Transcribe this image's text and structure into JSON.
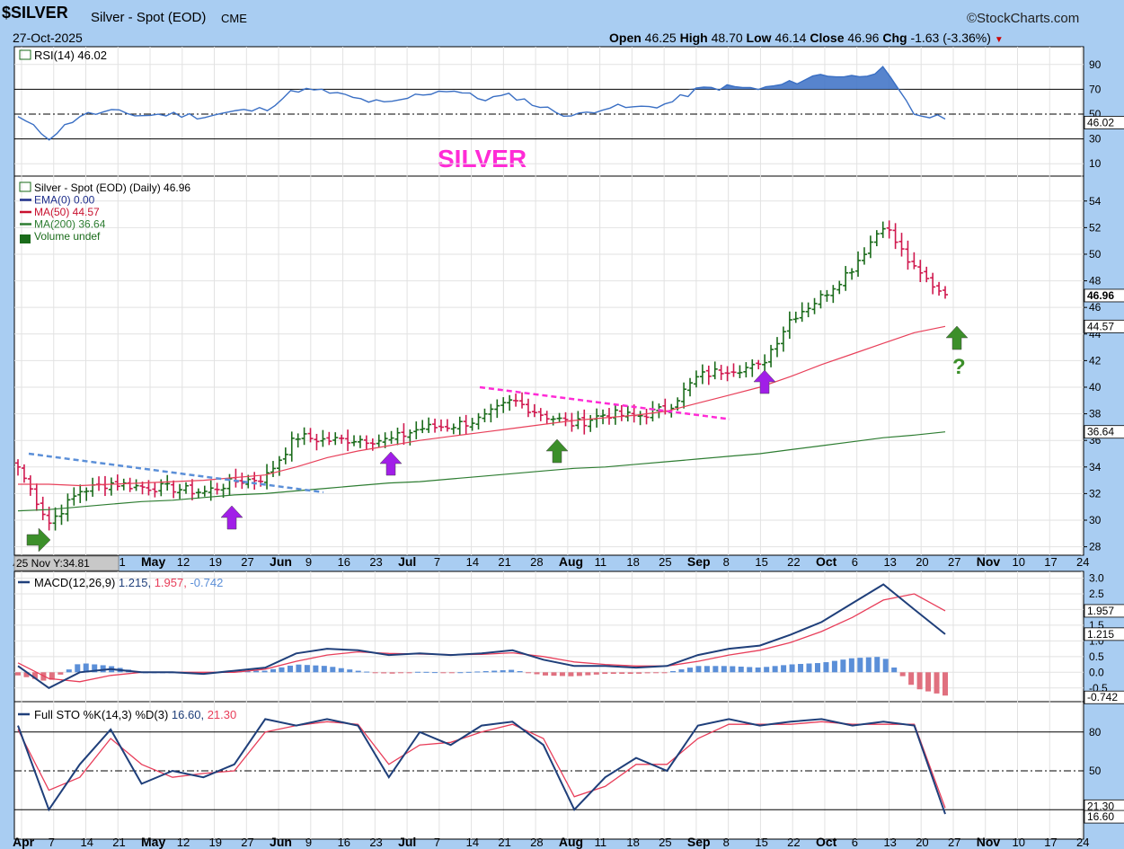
{
  "header": {
    "symbol": "$SILVER",
    "name": "Silver - Spot (EOD)",
    "exchange": "CME",
    "date": "27-Oct-2025",
    "brand": "©StockCharts.com",
    "ohlc": {
      "open_label": "Open",
      "open": "46.25",
      "high_label": "High",
      "high": "48.70",
      "low_label": "Low",
      "low": "46.14",
      "close_label": "Close",
      "close": "46.96",
      "chg_label": "Chg",
      "chg": "-1.63 (-3.36%)"
    },
    "annotation": "SILVER"
  },
  "colors": {
    "background": "#a9cdf2",
    "panel": "#ffffff",
    "up_bar": "#1a6b1a",
    "down_bar": "#d0184e",
    "ma50": "#e8405a",
    "ma200": "#2e7d32",
    "rsi": "#3a6fc4",
    "macd": "#1f3f7a",
    "signal": "#e83e5a",
    "hist_pos": "#5b8fd8",
    "hist_neg": "#e0707f",
    "sto_k": "#1f3f7a",
    "sto_d": "#e83e5a",
    "annotation": "#ff2bd6",
    "arrow_purple": "#a11ee8",
    "arrow_green": "#3c8f2a"
  },
  "panels": {
    "rsi": {
      "label": "RSI(14) 46.02",
      "last": "46.02",
      "ticks": [
        "90",
        "70",
        "50",
        "30",
        "10"
      ]
    },
    "price": {
      "legend": [
        "Silver - Spot (EOD) (Daily) 46.96",
        "EMA(0) 0.00",
        "MA(50) 44.57",
        "MA(200) 36.64",
        "Volume undef"
      ],
      "ticks": [
        "54",
        "52",
        "50",
        "48",
        "46",
        "44",
        "42",
        "40",
        "38",
        "36",
        "34",
        "32",
        "30",
        "28"
      ],
      "last_close": "46.96",
      "ma50_last": "44.57",
      "ma200_last": "36.64",
      "question": "?",
      "tooltip": "25 Nov Y:34.81"
    },
    "macd": {
      "label": "MACD(12,26,9)",
      "vals": [
        "1.215",
        "1.957",
        "-0.742"
      ],
      "ticks": [
        "3.0",
        "2.5",
        "2.0",
        "1.5",
        "1.0",
        "0.5",
        "0.0",
        "-0.5"
      ],
      "tags": [
        "1.957",
        "1.215",
        "-0.742"
      ]
    },
    "sto": {
      "label": "Full STO %K(14,3) %D(3)",
      "vals": [
        "16.60",
        "21.30"
      ],
      "ticks": [
        "80",
        "50",
        "20"
      ],
      "tags": [
        "21.30",
        "16.60"
      ]
    }
  },
  "x_axis": {
    "labels": [
      "Apr",
      "7",
      "14",
      "21",
      "May",
      "12",
      "19",
      "27",
      "Jun",
      "9",
      "16",
      "23",
      "Jul",
      "7",
      "14",
      "21",
      "28",
      "Aug",
      "11",
      "18",
      "25",
      "Sep",
      "8",
      "15",
      "22",
      "Oct",
      "6",
      "13",
      "20",
      "27",
      "Nov",
      "10",
      "17",
      "24"
    ],
    "bold": [
      "Apr",
      "May",
      "Jun",
      "Jul",
      "Aug",
      "Sep",
      "Oct",
      "Nov"
    ]
  },
  "chart_data": {
    "type": "ohlc",
    "title": "$SILVER Silver - Spot (EOD)",
    "x": [
      "Apr 1",
      "Apr 7",
      "Apr 14",
      "Apr 21",
      "Apr 28",
      "May 5",
      "May 12",
      "May 19",
      "May 27",
      "Jun 2",
      "Jun 9",
      "Jun 16",
      "Jun 23",
      "Jun 30",
      "Jul 7",
      "Jul 14",
      "Jul 21",
      "Jul 28",
      "Aug 4",
      "Aug 11",
      "Aug 18",
      "Aug 25",
      "Sep 2",
      "Sep 8",
      "Sep 15",
      "Sep 22",
      "Sep 29",
      "Oct 6",
      "Oct 13",
      "Oct 20",
      "Oct 27"
    ],
    "close": [
      34.0,
      29.8,
      32.2,
      32.8,
      32.5,
      32.4,
      32.1,
      32.9,
      33.2,
      36.3,
      36.0,
      36.1,
      36.0,
      36.9,
      37.1,
      37.6,
      39.0,
      37.9,
      37.2,
      38.0,
      37.8,
      38.4,
      40.8,
      41.4,
      41.5,
      45.2,
      46.8,
      49.0,
      52.3,
      48.8,
      46.96
    ],
    "ma50": [
      32.7,
      32.7,
      32.6,
      32.7,
      32.8,
      32.9,
      33.0,
      33.2,
      33.4,
      34.0,
      34.7,
      35.2,
      35.6,
      36.0,
      36.3,
      36.6,
      36.9,
      37.2,
      37.5,
      37.7,
      37.9,
      38.2,
      38.8,
      39.4,
      40.0,
      40.8,
      41.7,
      42.5,
      43.3,
      44.1,
      44.57
    ],
    "ma200": [
      30.7,
      30.8,
      31.0,
      31.2,
      31.4,
      31.5,
      31.7,
      31.9,
      32.0,
      32.2,
      32.4,
      32.6,
      32.8,
      32.9,
      33.1,
      33.3,
      33.5,
      33.7,
      33.9,
      34.0,
      34.2,
      34.4,
      34.6,
      34.8,
      35.0,
      35.3,
      35.6,
      35.9,
      36.2,
      36.4,
      36.64
    ],
    "ylim": [
      27.5,
      55.2
    ],
    "series_summary": {
      "open": 46.25,
      "high": 48.7,
      "low": 46.14,
      "close": 46.96,
      "change": -1.63,
      "change_pct": -3.36
    },
    "rsi": {
      "last": 46.02,
      "ylim": [
        0,
        100
      ]
    },
    "macd": {
      "macd": 1.215,
      "signal": 1.957,
      "histogram": -0.742
    },
    "stochastic": {
      "k": 16.6,
      "d": 21.3
    }
  }
}
